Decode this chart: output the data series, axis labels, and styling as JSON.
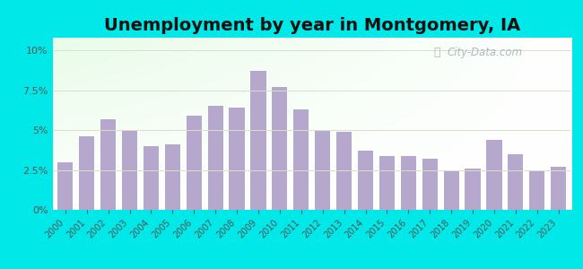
{
  "title": "Unemployment by year in Montgomery, IA",
  "years": [
    2000,
    2001,
    2002,
    2003,
    2004,
    2005,
    2006,
    2007,
    2008,
    2009,
    2010,
    2011,
    2012,
    2013,
    2014,
    2015,
    2016,
    2017,
    2018,
    2019,
    2020,
    2021,
    2022,
    2023
  ],
  "values": [
    3.0,
    4.6,
    5.7,
    5.0,
    4.0,
    4.1,
    5.9,
    6.5,
    6.4,
    8.7,
    7.7,
    6.3,
    5.0,
    4.9,
    3.7,
    3.4,
    3.4,
    3.2,
    2.4,
    2.6,
    4.4,
    3.5,
    2.5,
    2.7
  ],
  "bar_color": "#b5a8cc",
  "bg_outer": "#00e8e8",
  "yticks": [
    0,
    2.5,
    5.0,
    7.5,
    10.0
  ],
  "ylim": [
    0,
    10.8
  ],
  "title_fontsize": 14,
  "watermark_text": "City-Data.com",
  "grid_color": "#ddddcc",
  "tick_color": "#555555",
  "title_color": "#111111"
}
